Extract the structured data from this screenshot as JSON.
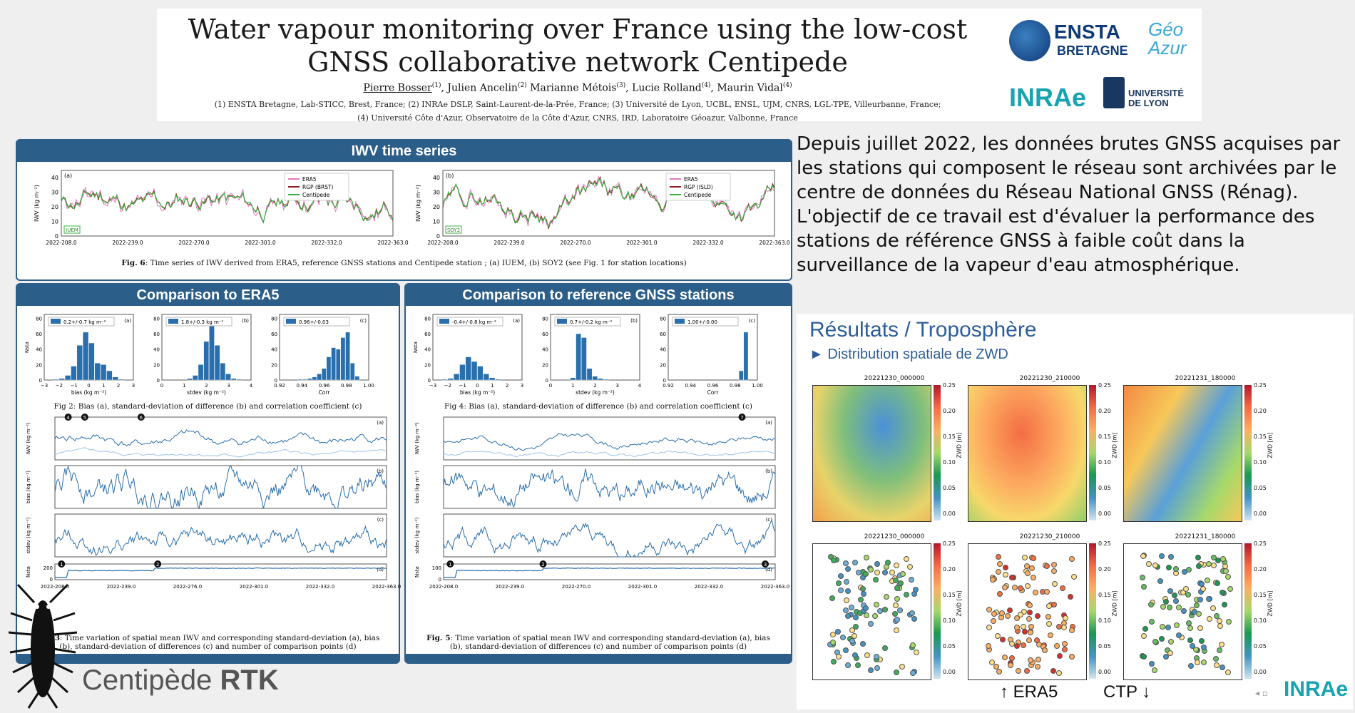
{
  "header": {
    "title_line1": "Water vapour monitoring over France using the low-cost",
    "title_line2": "GNSS collaborative network Centipede",
    "authors": [
      {
        "name": "Pierre Bosser",
        "aff": "(1)"
      },
      {
        "name": "Julien Ancelin",
        "aff": "(2)"
      },
      {
        "name": "Marianne Métois",
        "aff": "(3)"
      },
      {
        "name": "Lucie Rolland",
        "aff": "(4)"
      },
      {
        "name": "Maurin Vidal",
        "aff": "(4)"
      }
    ],
    "affiliations_line1": "(1) ENSTA Bretagne, Lab-STICC, Brest, France; (2) INRAe DSLP, Saint-Laurent-de-la-Prée, France; (3) Université de Lyon, UCBL, ENSL, UJM, CNRS, LGL-TPE, Villeurbanne, France;",
    "affiliations_line2": "(4) Université Côte d'Azur, Observatoire de la Côte d'Azur, CNRS, IRD, Laboratoire Géoazur, Valbonne, France",
    "logos": {
      "ensta_line1": "ENSTA",
      "ensta_line2": "BRETAGNE",
      "geoazur": "Géo Azur",
      "inrae": "INRAe",
      "udl_line1": "UNIVERSITÉ",
      "udl_line2": "DE LYON"
    }
  },
  "iwv_panel": {
    "title": "IWV time series",
    "plot_a": {
      "tag": "(a)",
      "station": "IUEM",
      "legend": [
        "ERA5",
        "RGP (BRST)",
        "Centipede"
      ]
    },
    "plot_b": {
      "tag": "(b)",
      "station": "SOY2",
      "legend": [
        "ERA5",
        "RGP (ISLD)",
        "Centipede"
      ]
    },
    "y_label": "IWV (kg m⁻²)",
    "y_ticks": [
      "0",
      "10",
      "20",
      "30",
      "40"
    ],
    "x_ticks": [
      "2022-208.0",
      "2022-239.0",
      "2022-270.0",
      "2022-301.0",
      "2022-332.0",
      "2022-363.0"
    ],
    "caption_bold": "Fig. 6",
    "caption": ": Time series of IWV derived from ERA5, reference GNSS stations and Centipede station ; (a) IUEM, (b) SOY2 (see Fig. 1 for station locations)"
  },
  "era5_panel": {
    "title": "Comparison to ERA5",
    "hist_a": {
      "tag": "(a)",
      "legend": "0.2+/-0.7 kg m⁻²",
      "xlabel": "bias (kg m⁻²)",
      "ylabel": "Nsta",
      "x_ticks": [
        "−3",
        "−2",
        "−1",
        "0",
        "1",
        "2",
        "3"
      ],
      "y_ticks": [
        "0",
        "20",
        "40",
        "60",
        "80"
      ],
      "values": [
        1,
        2,
        6,
        18,
        45,
        62,
        48,
        22,
        20,
        12,
        4,
        1
      ]
    },
    "hist_b": {
      "tag": "(b)",
      "legend": "1.8+/-0.3 kg m⁻²",
      "xlabel": "stdev (kg m⁻²)",
      "x_ticks": [
        "0",
        "1",
        "2",
        "3",
        "4"
      ],
      "y_ticks": [
        "0",
        "20",
        "40",
        "60",
        "80"
      ],
      "values": [
        0,
        0,
        0,
        2,
        6,
        20,
        50,
        72,
        45,
        22,
        8,
        2,
        1
      ]
    },
    "hist_c": {
      "tag": "(c)",
      "legend": "0.96+/-0.03",
      "xlabel": "Corr",
      "x_ticks": [
        "0.92",
        "0.94",
        "0.96",
        "0.98",
        "1.00"
      ],
      "y_ticks": [
        "0",
        "20",
        "40",
        "60",
        "80"
      ],
      "values": [
        0,
        0,
        1,
        1,
        2,
        4,
        8,
        15,
        30,
        42,
        40,
        55,
        62,
        22,
        5
      ]
    },
    "fig2_caption": "Fig 2: Bias (a), standard-deviation of difference (b) and correlation coefficient (c)",
    "ts_labels": [
      "IWV (kg m⁻²)",
      "bias (kg m⁻²)",
      "stdev (kg m⁻²)",
      "Nsta"
    ],
    "ts_tags": [
      "(a)",
      "(b)",
      "(c)",
      "(d)"
    ],
    "markers_top": [
      "4",
      "5",
      "6"
    ],
    "markers_bottom": [
      "1",
      "2"
    ],
    "nsta_ticks": [
      "0",
      "200"
    ],
    "x_ticks": [
      "2022-208.0",
      "2022-239.0",
      "2022-276.0",
      "2022-301.0",
      "2022-332.0",
      "2022-363.0"
    ],
    "fig3_caption_bold": "Fig. 3",
    "fig3_caption": ": Time variation of spatial mean IWV and corresponding standard-deviation (a), bias (b), standard-deviation of differences (c) and number of comparison points (d)"
  },
  "ref_panel": {
    "title": "Comparison to reference GNSS stations",
    "hist_a": {
      "tag": "(a)",
      "legend": "-0.4+/-0.8 kg m⁻²",
      "xlabel": "bias (kg m⁻²)",
      "ylabel": "Nsta",
      "x_ticks": [
        "−3",
        "−2",
        "−1",
        "0",
        "1",
        "2",
        "3"
      ],
      "y_ticks": [
        "0",
        "20",
        "40",
        "60",
        "80"
      ],
      "values": [
        1,
        2,
        8,
        20,
        30,
        24,
        18,
        8,
        3,
        1,
        0,
        0
      ]
    },
    "hist_b": {
      "tag": "(b)",
      "legend": "0.7+/-0.2 kg m⁻²",
      "xlabel": "stdev (kg m⁻²)",
      "x_ticks": [
        "0",
        "1",
        "2",
        "3",
        "4"
      ],
      "y_ticks": [
        "0",
        "20",
        "40",
        "60",
        "80"
      ],
      "values": [
        0,
        0,
        3,
        60,
        55,
        15,
        5,
        2,
        1,
        0,
        0,
        0,
        0
      ]
    },
    "hist_c": {
      "tag": "(c)",
      "legend": "1.00+/-0.00",
      "xlabel": "Corr",
      "x_ticks": [
        "0.92",
        "0.94",
        "0.96",
        "0.98",
        "1.00"
      ],
      "y_ticks": [
        "0",
        "20",
        "40",
        "60",
        "80"
      ],
      "values": [
        0,
        0,
        0,
        0,
        0,
        0,
        0,
        0,
        0,
        0,
        0,
        0,
        0,
        12,
        62
      ]
    },
    "fig4_caption": "Fig 4: Bias (a), standard-deviation of difference (b) and correlation coefficient (c)",
    "ts_labels": [
      "IWV (kg m⁻²)",
      "bias (kg m⁻²)",
      "stdev (kg m⁻²)",
      "Nsta"
    ],
    "ts_tags": [
      "(a)",
      "(b)",
      "(c)",
      "(d)"
    ],
    "markers_top": [
      "7"
    ],
    "markers_bottom": [
      "1",
      "2",
      "3"
    ],
    "nsta_ticks": [
      "0",
      "100"
    ],
    "x_ticks": [
      "2022-208.0",
      "2022-239.0",
      "2022-270.0",
      "2022-301.0",
      "2022-332.0",
      "2022-363.0"
    ],
    "fig5_caption_bold": "Fig. 5",
    "fig5_caption": ": Time variation of spatial mean IWV and corresponding standard-deviation (a), bias (b), standard-deviation of differences (c) and number of comparison points (d)"
  },
  "intro": {
    "para1": "Depuis juillet 2022, les données brutes GNSS acquises par les stations qui composent le réseau sont archivées par le centre de données du Réseau National GNSS (Rénag).",
    "para2": "L'objectif de ce travail est d'évaluer la performance des stations de référence GNSS à faible coût dans la surveillance de la vapeur d'eau atmosphérique."
  },
  "results": {
    "title": "Résultats / Troposphère",
    "subtitle": "► Distribution spatiale de ZWD",
    "map_titles": [
      "20221230_000000",
      "20221230_210000",
      "20221231_180000"
    ],
    "colorbar_ticks": [
      "0.25",
      "0.20",
      "0.15",
      "0.10",
      "0.05",
      "0.00"
    ],
    "colorbar_unit": "ZWD [m]",
    "legend_era5": "↑ ERA5",
    "legend_ctp": "CTP ↓",
    "inrae": "INRAe"
  },
  "footer": {
    "brand_regular": "Centipède",
    "brand_bold": "RTK"
  },
  "colors": {
    "panel_blue": "#2c5e8a",
    "series": "#2a6fad",
    "centipede_green": "#3cb043",
    "era5_pink": "#e377c2",
    "rgp_red": "#8b1a1a"
  }
}
